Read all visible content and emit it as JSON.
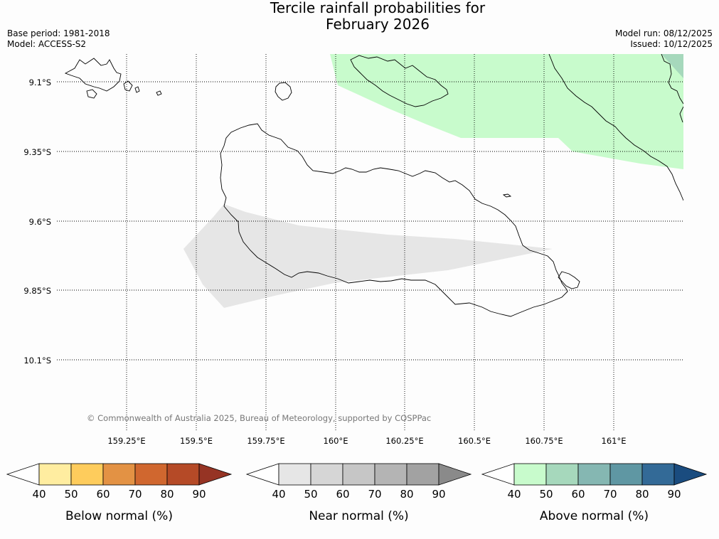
{
  "title_line1": "Tercile rainfall probabilities for",
  "title_line2": "February 2026",
  "base_period": "Base period: 1981-2018",
  "model": "Model: ACCESS-S2",
  "model_run": "Model run: 08/12/2025",
  "issued": "Issued: 10/12/2025",
  "copyright": "© Commonwealth of Australia 2025, Bureau of Meteorology, supported by COSPPac",
  "map": {
    "lat_labels": [
      "9.1°S",
      "9.35°S",
      "9.6°S",
      "9.85°S",
      "10.1°S"
    ],
    "lon_labels": [
      "159.25°E",
      "159.5°E",
      "159.75°E",
      "160°E",
      "160.25°E",
      "160.5°E",
      "160.75°E",
      "161°E"
    ],
    "colors": {
      "above_50": "#c8fbcc",
      "above_60": "#a6d8bc",
      "near_50": "#e6e6e6"
    }
  },
  "legends": [
    {
      "label": "Below normal (%)",
      "ticks": [
        "40",
        "50",
        "60",
        "70",
        "80",
        "90"
      ],
      "colors": [
        "#ffffff",
        "#ffeda0",
        "#fecc5c",
        "#e39244",
        "#d0672f",
        "#b54a27",
        "#963424"
      ]
    },
    {
      "label": "Near normal (%)",
      "ticks": [
        "40",
        "50",
        "60",
        "70",
        "80",
        "90"
      ],
      "colors": [
        "#ffffff",
        "#e6e6e6",
        "#d6d6d6",
        "#c6c6c6",
        "#b4b4b4",
        "#a2a2a2",
        "#8a8a8a"
      ]
    },
    {
      "label": "Above normal (%)",
      "ticks": [
        "40",
        "50",
        "60",
        "70",
        "80",
        "90"
      ],
      "colors": [
        "#ffffff",
        "#c8fbcc",
        "#a6d8bc",
        "#85b7b2",
        "#5f97a3",
        "#336a97",
        "#1a4c7f"
      ]
    }
  ]
}
